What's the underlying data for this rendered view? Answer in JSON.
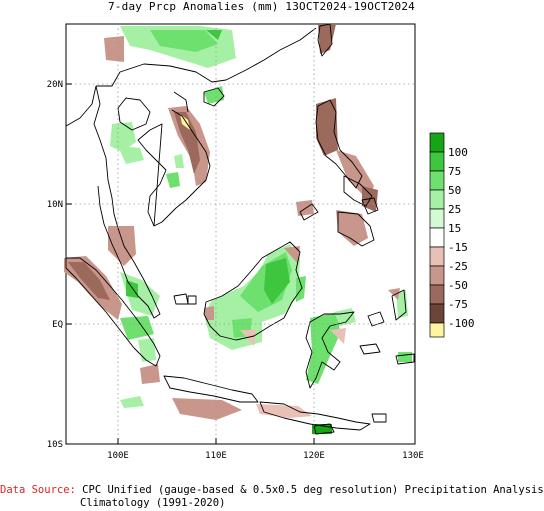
{
  "title": "7-day Prcp Anomalies (mm) 13OCT2024-19OCT2024",
  "axes": {
    "lat_labels": [
      "20N",
      "10N",
      "EQ",
      "10S"
    ],
    "lon_labels": [
      "100E",
      "110E",
      "120E",
      "130E"
    ]
  },
  "legend": {
    "labels": [
      "100",
      "75",
      "50",
      "25",
      "15",
      "-15",
      "-25",
      "-50",
      "-75",
      "-100"
    ],
    "colors": [
      "#17a517",
      "#3ec63e",
      "#6ee06e",
      "#a5f0a5",
      "#d4fad4",
      "#ffffff",
      "#e9c0b6",
      "#c8968a",
      "#9c6a5c",
      "#6b4538",
      "#fff5a0"
    ]
  },
  "colors": {
    "land_outline": "#000000",
    "grid": "#999999",
    "source_label": "#dd2222"
  },
  "footer": {
    "source_label": "Data Source:",
    "source_text": " CPC Unified (gauge-based & 0.5x0.5 deg resolution) Precipitation Analysis",
    "climatology": "Climatology (1991-2020)"
  }
}
